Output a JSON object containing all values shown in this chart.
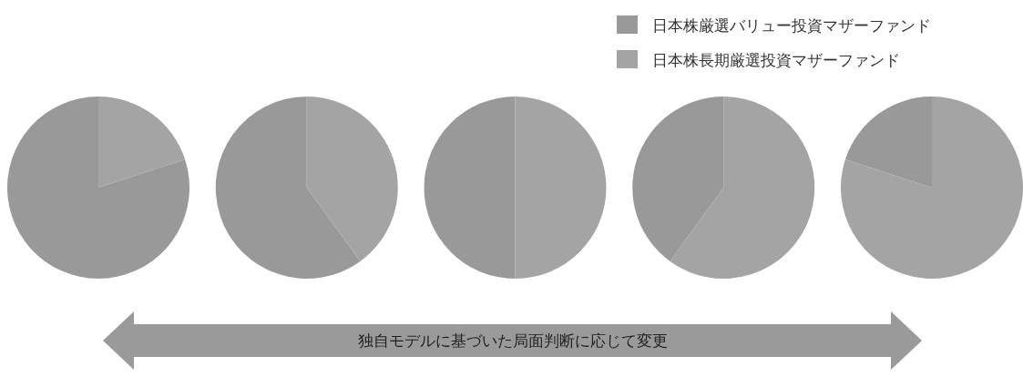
{
  "chart_data": [
    {
      "type": "pie",
      "categories": [
        "日本株厳選バリュー投資マザーファンド",
        "日本株長期厳選投資マザーファンド"
      ],
      "values": [
        80,
        20
      ],
      "colors": [
        "#999999",
        "#a4a4a4"
      ],
      "legend": "top right",
      "annotations": [
        "独自モデルに基づいた局面判断に応じて変更"
      ]
    },
    {
      "type": "pie",
      "categories": [
        null,
        null
      ],
      "values": [
        60,
        40
      ],
      "colors": [
        "#999999",
        "#a4a4a4"
      ]
    },
    {
      "type": "pie",
      "categories": [
        null,
        null
      ],
      "values": [
        50,
        50
      ],
      "colors": [
        "#999999",
        "#a4a4a4"
      ]
    },
    {
      "type": "pie",
      "categories": [
        null,
        null
      ],
      "values": [
        40,
        60
      ],
      "colors": [
        "#999999",
        "#a4a4a4"
      ]
    },
    {
      "type": "pie",
      "categories": [
        null,
        null
      ],
      "values": [
        20,
        80
      ],
      "colors": [
        "#999999",
        "#a4a4a4"
      ]
    }
  ]
}
